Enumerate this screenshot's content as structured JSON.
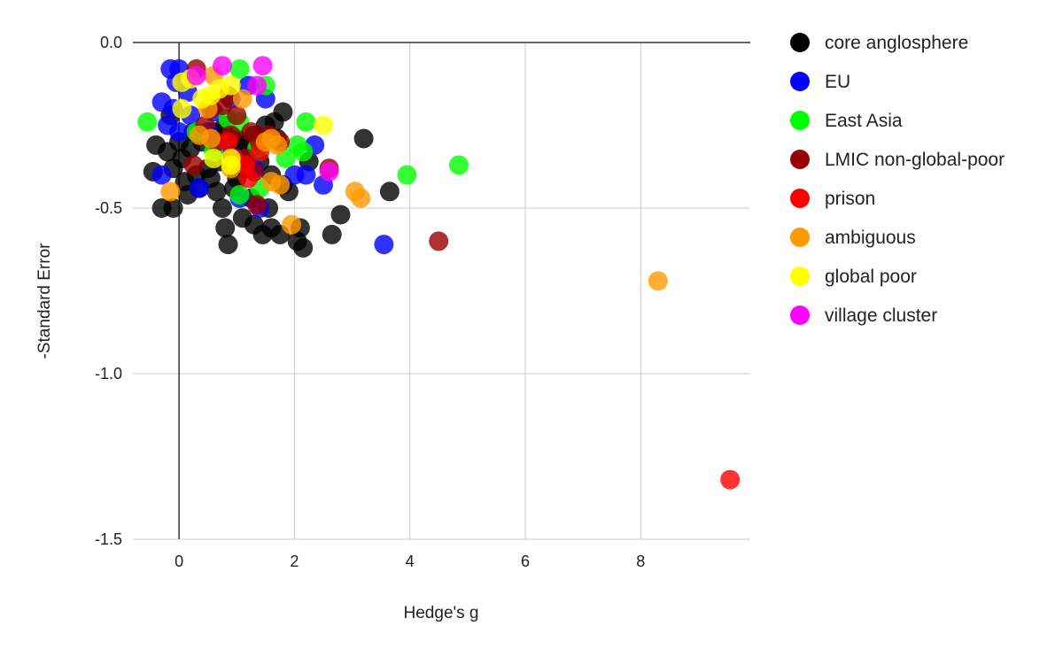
{
  "chart_data": {
    "type": "scatter",
    "title": "",
    "xlabel": "Hedge's g",
    "ylabel": "-Standard Error",
    "xlim": [
      -0.8,
      9.9
    ],
    "ylim": [
      -1.5,
      0.0
    ],
    "x_ticks": [
      {
        "value": 0,
        "label": "0"
      },
      {
        "value": 2,
        "label": "2"
      },
      {
        "value": 4,
        "label": "4"
      },
      {
        "value": 6,
        "label": "6"
      },
      {
        "value": 8,
        "label": "8"
      }
    ],
    "y_ticks": [
      {
        "value": 0.0,
        "label": "0.0"
      },
      {
        "value": -0.5,
        "label": "-0.5"
      },
      {
        "value": -1.0,
        "label": "-1.0"
      },
      {
        "value": -1.5,
        "label": "-1.5"
      }
    ],
    "grid": true,
    "legend_position": "right",
    "series": [
      {
        "name": "core anglosphere",
        "color": "#000000",
        "points": [
          [
            -0.4,
            -0.31
          ],
          [
            -0.45,
            -0.39
          ],
          [
            -0.3,
            -0.5
          ],
          [
            -0.1,
            -0.5
          ],
          [
            0.15,
            -0.46
          ],
          [
            0.35,
            -0.44
          ],
          [
            0.55,
            -0.41
          ],
          [
            0.75,
            -0.5
          ],
          [
            0.8,
            -0.56
          ],
          [
            0.85,
            -0.61
          ],
          [
            1.1,
            -0.53
          ],
          [
            1.3,
            -0.55
          ],
          [
            1.45,
            -0.58
          ],
          [
            1.6,
            -0.56
          ],
          [
            1.75,
            -0.58
          ],
          [
            1.9,
            -0.45
          ],
          [
            2.05,
            -0.6
          ],
          [
            2.15,
            -0.62
          ],
          [
            2.1,
            -0.56
          ],
          [
            2.25,
            -0.36
          ],
          [
            2.65,
            -0.58
          ],
          [
            2.8,
            -0.52
          ],
          [
            3.2,
            -0.29
          ],
          [
            3.65,
            -0.45
          ],
          [
            1.8,
            -0.21
          ],
          [
            1.65,
            -0.24
          ],
          [
            1.5,
            -0.25
          ],
          [
            1.3,
            -0.28
          ],
          [
            1.1,
            -0.31
          ],
          [
            0.9,
            -0.34
          ],
          [
            0.7,
            -0.36
          ],
          [
            0.5,
            -0.38
          ],
          [
            0.3,
            -0.4
          ],
          [
            0.1,
            -0.42
          ],
          [
            -0.1,
            -0.38
          ],
          [
            -0.2,
            -0.33
          ],
          [
            0.0,
            -0.3
          ],
          [
            0.2,
            -0.32
          ],
          [
            0.4,
            -0.3
          ],
          [
            0.6,
            -0.27
          ],
          [
            0.8,
            -0.25
          ],
          [
            1.0,
            -0.29
          ],
          [
            1.2,
            -0.33
          ],
          [
            1.4,
            -0.36
          ],
          [
            1.6,
            -0.4
          ],
          [
            1.8,
            -0.43
          ],
          [
            1.0,
            -0.41
          ],
          [
            0.65,
            -0.45
          ],
          [
            1.25,
            -0.47
          ],
          [
            1.55,
            -0.5
          ],
          [
            0.95,
            -0.44
          ],
          [
            1.15,
            -0.38
          ],
          [
            0.25,
            -0.27
          ],
          [
            -0.15,
            -0.22
          ],
          [
            0.05,
            -0.35
          ],
          [
            1.7,
            -0.29
          ]
        ]
      },
      {
        "name": "EU",
        "color": "#0000ff",
        "points": [
          [
            -0.15,
            -0.08
          ],
          [
            0.0,
            -0.08
          ],
          [
            -0.05,
            -0.12
          ],
          [
            -0.3,
            -0.18
          ],
          [
            -0.2,
            -0.25
          ],
          [
            0.0,
            -0.27
          ],
          [
            0.2,
            -0.22
          ],
          [
            0.5,
            -0.27
          ],
          [
            0.7,
            -0.32
          ],
          [
            1.0,
            -0.35
          ],
          [
            1.3,
            -0.38
          ],
          [
            1.5,
            -0.17
          ],
          [
            1.2,
            -0.13
          ],
          [
            0.9,
            -0.17
          ],
          [
            2.0,
            -0.4
          ],
          [
            2.2,
            -0.4
          ],
          [
            2.35,
            -0.31
          ],
          [
            2.5,
            -0.43
          ],
          [
            3.55,
            -0.61
          ],
          [
            -0.3,
            -0.4
          ],
          [
            0.35,
            -0.44
          ],
          [
            1.05,
            -0.47
          ],
          [
            1.4,
            -0.5
          ],
          [
            -0.1,
            -0.2
          ],
          [
            0.15,
            -0.15
          ],
          [
            0.6,
            -0.21
          ]
        ]
      },
      {
        "name": "East Asia",
        "color": "#00ff00",
        "points": [
          [
            -0.55,
            -0.24
          ],
          [
            1.05,
            -0.08
          ],
          [
            1.5,
            -0.13
          ],
          [
            0.3,
            -0.27
          ],
          [
            0.85,
            -0.23
          ],
          [
            1.05,
            -0.24
          ],
          [
            1.35,
            -0.32
          ],
          [
            1.85,
            -0.35
          ],
          [
            2.05,
            -0.31
          ],
          [
            2.15,
            -0.33
          ],
          [
            2.2,
            -0.24
          ],
          [
            1.05,
            -0.46
          ],
          [
            1.4,
            -0.44
          ],
          [
            3.95,
            -0.4
          ],
          [
            4.85,
            -0.37
          ],
          [
            0.6,
            -0.33
          ]
        ]
      },
      {
        "name": "LMIC non-global-poor",
        "color": "#990000",
        "points": [
          [
            0.3,
            -0.08
          ],
          [
            0.55,
            -0.2
          ],
          [
            0.75,
            -0.19
          ],
          [
            0.85,
            -0.16
          ],
          [
            1.0,
            -0.22
          ],
          [
            1.25,
            -0.27
          ],
          [
            1.4,
            -0.3
          ],
          [
            1.55,
            -0.28
          ],
          [
            1.75,
            -0.3
          ],
          [
            1.15,
            -0.35
          ],
          [
            0.9,
            -0.28
          ],
          [
            0.45,
            -0.25
          ],
          [
            0.25,
            -0.37
          ],
          [
            1.35,
            -0.49
          ],
          [
            2.6,
            -0.38
          ],
          [
            4.5,
            -0.6
          ],
          [
            1.3,
            -0.39
          ],
          [
            0.65,
            -0.3
          ]
        ]
      },
      {
        "name": "prison",
        "color": "#ff0000",
        "points": [
          [
            0.95,
            -0.35
          ],
          [
            1.15,
            -0.37
          ],
          [
            1.4,
            -0.33
          ],
          [
            0.85,
            -0.3
          ],
          [
            1.2,
            -0.41
          ],
          [
            9.55,
            -1.32
          ]
        ]
      },
      {
        "name": "ambiguous",
        "color": "#ff9900",
        "points": [
          [
            -0.15,
            -0.45
          ],
          [
            0.35,
            -0.28
          ],
          [
            0.5,
            -0.2
          ],
          [
            0.6,
            -0.1
          ],
          [
            0.55,
            -0.29
          ],
          [
            0.9,
            -0.38
          ],
          [
            1.1,
            -0.17
          ],
          [
            1.5,
            -0.3
          ],
          [
            1.6,
            -0.42
          ],
          [
            1.75,
            -0.43
          ],
          [
            1.6,
            -0.29
          ],
          [
            1.7,
            -0.31
          ],
          [
            1.95,
            -0.55
          ],
          [
            3.05,
            -0.45
          ],
          [
            3.15,
            -0.47
          ],
          [
            8.3,
            -0.72
          ]
        ]
      },
      {
        "name": "global poor",
        "color": "#ffff00",
        "points": [
          [
            0.05,
            -0.12
          ],
          [
            0.05,
            -0.2
          ],
          [
            0.4,
            -0.17
          ],
          [
            0.7,
            -0.14
          ],
          [
            0.9,
            -0.13
          ],
          [
            0.6,
            -0.35
          ],
          [
            0.9,
            -0.37
          ],
          [
            0.9,
            -0.35
          ],
          [
            2.5,
            -0.25
          ],
          [
            0.2,
            -0.11
          ],
          [
            0.55,
            -0.16
          ]
        ]
      },
      {
        "name": "village cluster",
        "color": "#ff00ff",
        "points": [
          [
            0.75,
            -0.07
          ],
          [
            1.45,
            -0.07
          ],
          [
            0.3,
            -0.1
          ],
          [
            1.35,
            -0.13
          ],
          [
            2.6,
            -0.39
          ]
        ]
      }
    ]
  }
}
